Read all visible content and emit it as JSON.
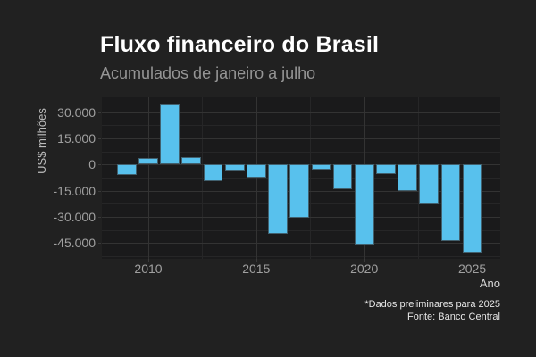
{
  "title": "Fluxo financeiro do Brasil",
  "subtitle": "Acumulados de janeiro a julho",
  "caption": {
    "line1": "*Dados preliminares para 2025",
    "line2": "Fonte: Banco Central"
  },
  "chart_data": {
    "type": "bar",
    "title": "Fluxo financeiro do Brasil",
    "subtitle": "Acumulados de janeiro a julho",
    "xlabel": "Ano",
    "ylabel": "US$ milhões",
    "caption": "*Dados preliminares para 2025 — Fonte: Banco Central",
    "categories": [
      2009,
      2010,
      2011,
      2012,
      2013,
      2014,
      2015,
      2016,
      2017,
      2018,
      2019,
      2020,
      2021,
      2022,
      2023,
      2024,
      2025
    ],
    "values": [
      -5800,
      3700,
      34300,
      4500,
      -9600,
      -4200,
      -7300,
      -39900,
      -30700,
      -3000,
      -14200,
      -46100,
      -5300,
      -15000,
      -23000,
      -43700,
      -50500
    ],
    "unit": "US$ milhões",
    "bar_color": "#58C1ED",
    "background_color": "#212121",
    "panel_color": "#1a1a1b",
    "grid": true,
    "legend": false,
    "xlim": [
      2007.85,
      2026.3
    ],
    "ylim": [
      -54100,
      38500
    ],
    "x_ticks": [
      2010,
      2015,
      2020,
      2025
    ],
    "x_tick_labels": [
      "2010",
      "2015",
      "2020",
      "2025"
    ],
    "x_minor_ticks": [
      2012.5,
      2017.5,
      2022.5
    ],
    "y_ticks": [
      30000,
      15000,
      0,
      -15000,
      -30000,
      -45000
    ],
    "y_tick_labels": [
      "30.000",
      "15.000",
      "0",
      "-15.000",
      "-30.000",
      "-45.000"
    ],
    "y_minor_ticks": [
      22500,
      7500,
      -7500,
      -22500,
      -37500,
      -52500
    ]
  }
}
